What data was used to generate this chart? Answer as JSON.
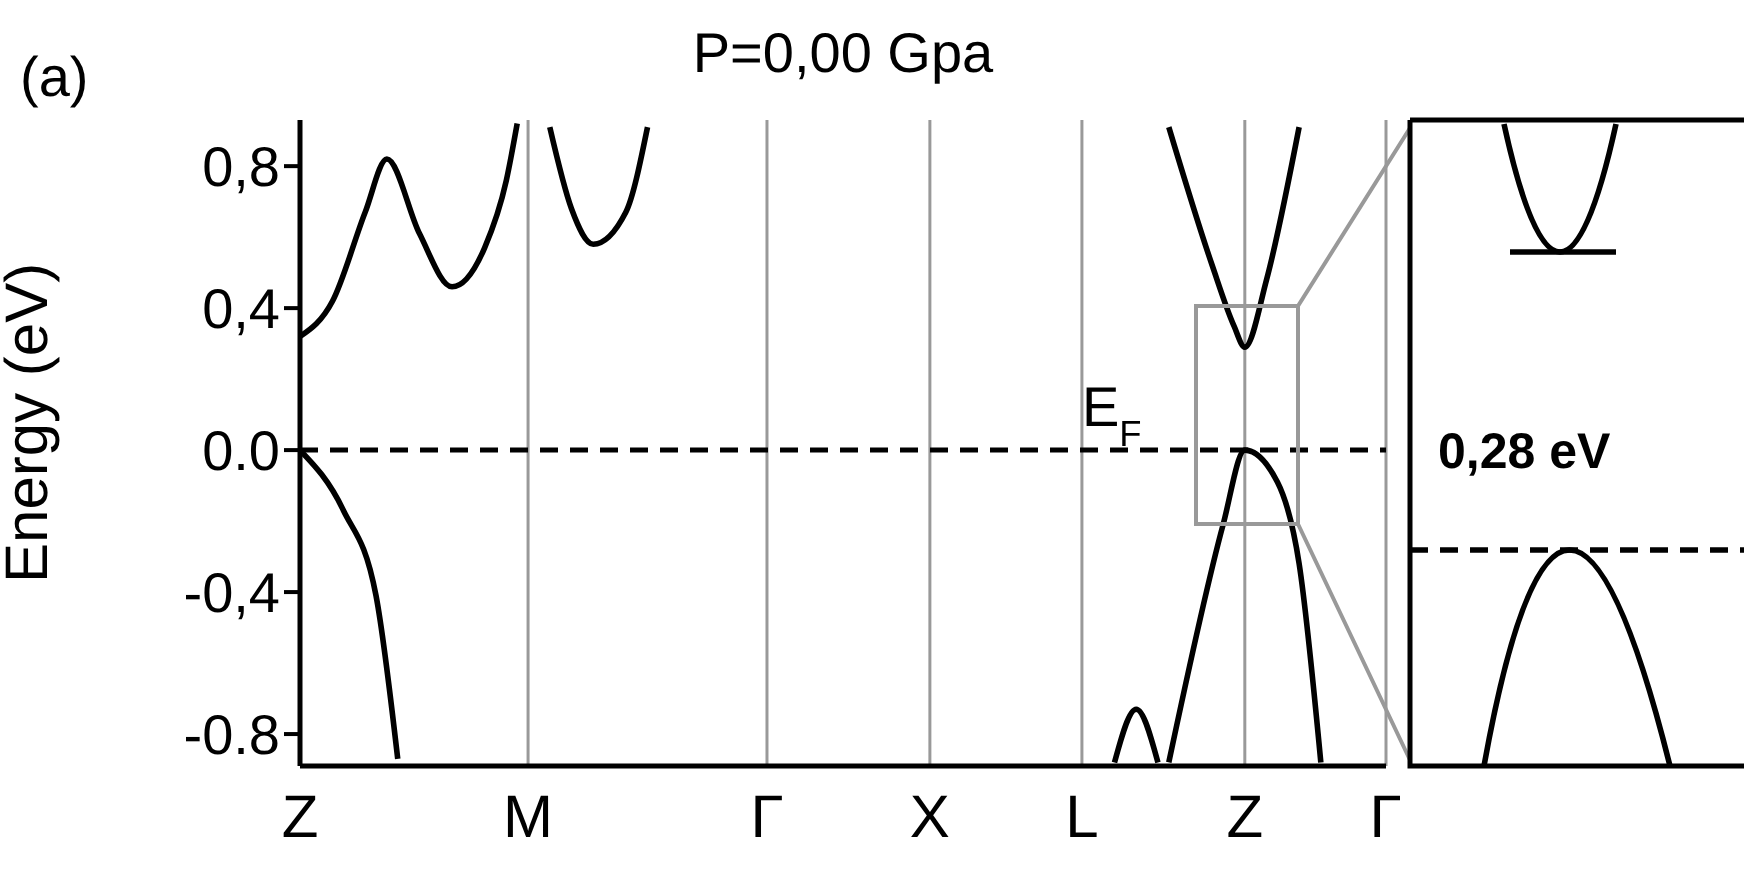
{
  "chart_data": [
    {
      "type": "line",
      "title": "P=0,00 Gpa",
      "ylabel": "Energy (eV)",
      "annotations": [
        "(a)"
      ],
      "categories": [
        "Z",
        null,
        null,
        null,
        null,
        null,
        null,
        null,
        null,
        null,
        null,
        null,
        null,
        null,
        null,
        null,
        null,
        null,
        null,
        null,
        null,
        "M",
        null,
        null,
        null,
        null,
        null,
        null,
        null,
        null,
        null,
        null,
        null,
        null,
        null,
        null,
        null,
        null,
        null,
        null,
        null,
        null,
        null,
        "Γ",
        null,
        null,
        null,
        null,
        null,
        null,
        null,
        null,
        null,
        null,
        null,
        null,
        null,
        null,
        "X",
        null,
        null,
        null,
        null,
        null,
        null,
        null,
        null,
        null,
        null,
        null,
        null,
        null,
        "L",
        null,
        null,
        null,
        null,
        null,
        null,
        null,
        null,
        null,
        null,
        null,
        null,
        null,
        null,
        "Z",
        null,
        null,
        null,
        null,
        null,
        null,
        null,
        null,
        null,
        null,
        null,
        null,
        "Γ"
      ],
      "ylim": [
        -0.89,
        0.93
      ],
      "yticks": [
        {
          "value": 0.8,
          "label": "0,8"
        },
        {
          "value": 0.4,
          "label": "0,4"
        },
        {
          "value": 0,
          "label": "0.0"
        },
        {
          "value": -0.4,
          "label": "-0,4"
        },
        {
          "value": -0.8,
          "label": "-0.8"
        }
      ],
      "grid": "x",
      "ref_lines": [
        {
          "axis": "y",
          "value": 0,
          "label": "E$_{F}$",
          "line_style": "dashed",
          "color": "#000000"
        }
      ],
      "series": [
        {
          "color": "#000000",
          "values": [
            0.32,
            null,
            null,
            0.42,
            null,
            null,
            0.67,
            null,
            0.82,
            null,
            null,
            0.61,
            null,
            null,
            0.46,
            null,
            null,
            0.57,
            null,
            0.76,
            0.92,
            null,
            null,
            null,
            null,
            null,
            null,
            null,
            null,
            null,
            null,
            null,
            null,
            null,
            null,
            null,
            null,
            null,
            null,
            null,
            null,
            null,
            null,
            null,
            null,
            null,
            null,
            null,
            null,
            null,
            null,
            null,
            null,
            null,
            null,
            null,
            null,
            null,
            null,
            null,
            null,
            null,
            null,
            null,
            null,
            null,
            null,
            null,
            null,
            null,
            null,
            null,
            null,
            null,
            null,
            null,
            null,
            null,
            null,
            null,
            null,
            null,
            null,
            null,
            null,
            null,
            null,
            null,
            null,
            null,
            null,
            null,
            null,
            null,
            null,
            null,
            null,
            null,
            null,
            null,
            null
          ]
        },
        {
          "color": "#000000",
          "values": [
            null,
            null,
            null,
            null,
            null,
            null,
            null,
            null,
            null,
            null,
            null,
            null,
            null,
            null,
            null,
            null,
            null,
            null,
            null,
            null,
            null,
            null,
            null,
            0.91,
            null,
            0.68,
            null,
            0.58,
            null,
            null,
            0.67,
            null,
            0.91,
            null,
            null,
            null,
            null,
            null,
            null,
            null,
            null,
            null,
            null,
            null,
            null,
            null,
            null,
            null,
            null,
            null,
            null,
            null,
            null,
            null,
            null,
            null,
            null,
            null,
            null,
            null,
            null,
            null,
            null,
            null,
            null,
            null,
            null,
            null,
            null,
            null,
            null,
            null,
            null,
            null,
            null,
            null,
            null,
            null,
            null,
            null,
            null,
            null,
            null,
            null,
            null,
            null,
            null,
            null,
            null,
            null,
            null,
            null,
            null,
            null,
            null,
            null,
            null,
            null,
            null,
            null,
            null
          ]
        },
        {
          "color": "#000000",
          "values": [
            0,
            null,
            null,
            null,
            -0.17,
            null,
            null,
            -0.41,
            null,
            -0.87,
            null,
            null,
            null,
            null,
            null,
            null,
            null,
            null,
            null,
            null,
            null,
            null,
            null,
            null,
            null,
            null,
            null,
            null,
            null,
            null,
            null,
            null,
            null,
            null,
            null,
            null,
            null,
            null,
            null,
            null,
            null,
            null,
            null,
            null,
            null,
            null,
            null,
            null,
            null,
            null,
            null,
            null,
            null,
            null,
            null,
            null,
            null,
            null,
            null,
            null,
            null,
            null,
            null,
            null,
            null,
            null,
            null,
            null,
            null,
            null,
            null,
            null,
            null,
            null,
            null,
            null,
            null,
            null,
            null,
            null,
            null,
            null,
            null,
            null,
            null,
            null,
            null,
            null,
            null,
            null,
            null,
            null,
            null,
            null,
            null,
            null,
            null,
            null,
            null,
            null,
            null
          ]
        },
        {
          "color": "#000000",
          "values": [
            null,
            null,
            null,
            null,
            null,
            null,
            null,
            null,
            null,
            null,
            null,
            null,
            null,
            null,
            null,
            null,
            null,
            null,
            null,
            null,
            null,
            null,
            null,
            null,
            null,
            null,
            null,
            null,
            null,
            null,
            null,
            null,
            null,
            null,
            null,
            null,
            null,
            null,
            null,
            null,
            null,
            null,
            null,
            null,
            null,
            null,
            null,
            null,
            null,
            null,
            null,
            null,
            null,
            null,
            null,
            null,
            null,
            null,
            null,
            null,
            null,
            null,
            null,
            null,
            null,
            null,
            null,
            null,
            null,
            null,
            null,
            null,
            null,
            null,
            null,
            -0.88,
            null,
            -0.73,
            null,
            -0.88,
            null,
            null,
            null,
            null,
            null,
            null,
            null,
            null,
            null,
            null,
            null,
            null,
            null,
            null,
            null,
            null,
            null,
            null,
            null,
            null,
            null
          ]
        },
        {
          "color": "#000000",
          "values": [
            null,
            null,
            null,
            null,
            null,
            null,
            null,
            null,
            null,
            null,
            null,
            null,
            null,
            null,
            null,
            null,
            null,
            null,
            null,
            null,
            null,
            null,
            null,
            null,
            null,
            null,
            null,
            null,
            null,
            null,
            null,
            null,
            null,
            null,
            null,
            null,
            null,
            null,
            null,
            null,
            null,
            null,
            null,
            null,
            null,
            null,
            null,
            null,
            null,
            null,
            null,
            null,
            null,
            null,
            null,
            null,
            null,
            null,
            null,
            null,
            null,
            null,
            null,
            null,
            null,
            null,
            null,
            null,
            null,
            null,
            null,
            null,
            null,
            null,
            null,
            null,
            null,
            null,
            null,
            null,
            0.91,
            null,
            null,
            null,
            0.52,
            null,
            0.35,
            0.29,
            null,
            0.48,
            null,
            null,
            0.91,
            null,
            null,
            null,
            null,
            null,
            null,
            null,
            null
          ]
        },
        {
          "color": "#000000",
          "values": [
            null,
            null,
            null,
            null,
            null,
            null,
            null,
            null,
            null,
            null,
            null,
            null,
            null,
            null,
            null,
            null,
            null,
            null,
            null,
            null,
            null,
            null,
            null,
            null,
            null,
            null,
            null,
            null,
            null,
            null,
            null,
            null,
            null,
            null,
            null,
            null,
            null,
            null,
            null,
            null,
            null,
            null,
            null,
            null,
            null,
            null,
            null,
            null,
            null,
            null,
            null,
            null,
            null,
            null,
            null,
            null,
            null,
            null,
            null,
            null,
            null,
            null,
            null,
            null,
            null,
            null,
            null,
            null,
            null,
            null,
            null,
            null,
            null,
            null,
            null,
            null,
            null,
            null,
            null,
            null,
            -0.88,
            null,
            null,
            null,
            null,
            -0.21,
            null,
            0,
            null,
            null,
            -0.09,
            null,
            -0.32,
            null,
            -0.88,
            null,
            null,
            null,
            null,
            null,
            null
          ]
        }
      ]
    },
    {
      "type": "other",
      "annotations": [
        "0,28 eV"
      ]
    }
  ]
}
